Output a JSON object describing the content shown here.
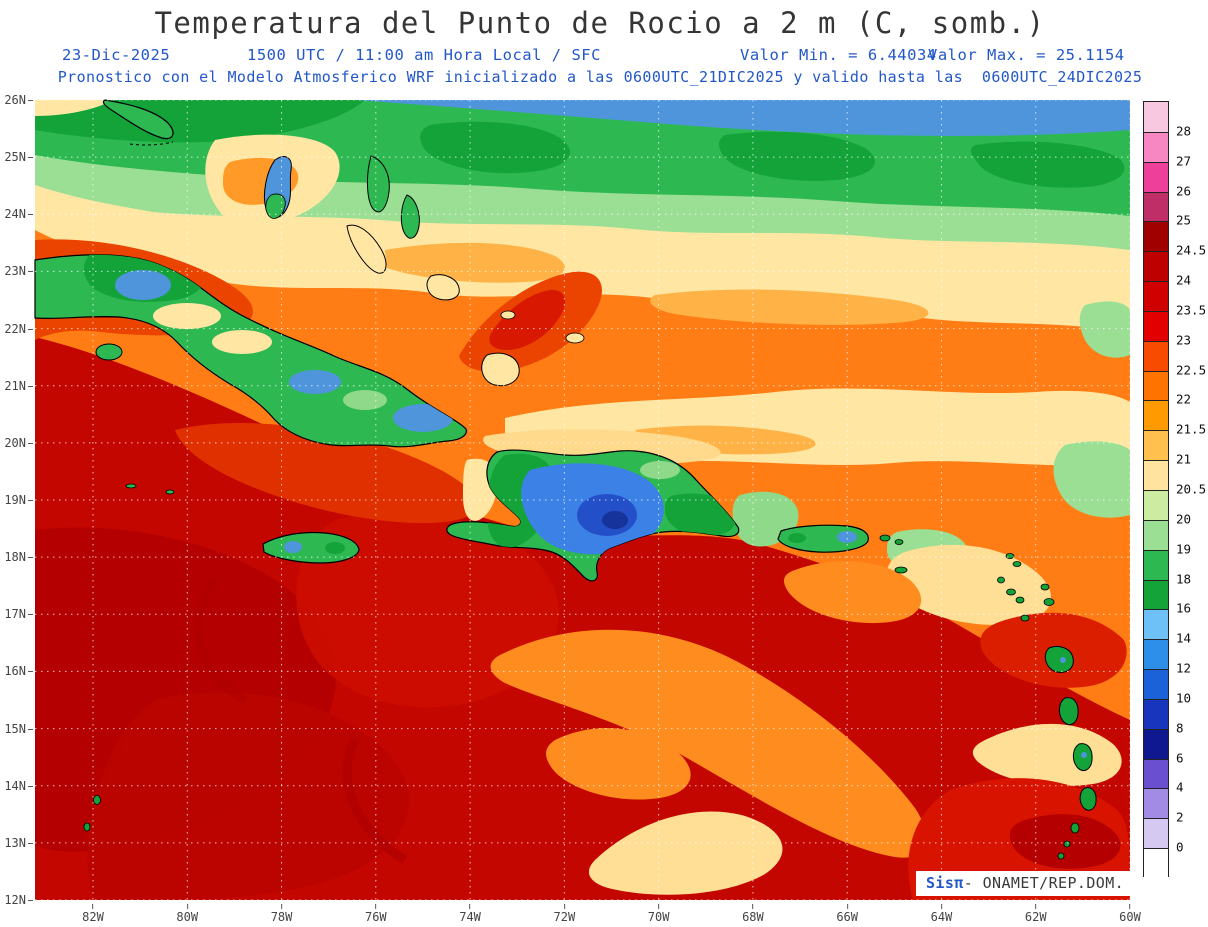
{
  "header": {
    "title": "Temperatura del Punto de Rocio a 2 m (C, somb.)",
    "date": "23-Dic-2025",
    "valid_time": "1500 UTC / 11:00 am Hora Local / SFC",
    "valor_min": "Valor Min. = 6.44034",
    "valor_max": "Valor Max. = 25.1154",
    "model_line": "Pronostico con el Modelo Atmosferico WRF inicializado a las 0600UTC_21DIC2025 y valido hasta las  0600UTC_24DIC2025"
  },
  "map": {
    "lat_ticks": [
      "26N",
      "25N",
      "24N",
      "23N",
      "22N",
      "21N",
      "20N",
      "19N",
      "18N",
      "17N",
      "16N",
      "15N",
      "14N",
      "13N",
      "12N"
    ],
    "lon_ticks": [
      "82W",
      "80W",
      "78W",
      "76W",
      "74W",
      "72W",
      "70W",
      "68W",
      "66W",
      "64W",
      "62W",
      "60W"
    ]
  },
  "colorbar": {
    "labels": [
      "28",
      "27",
      "26",
      "25",
      "24.5",
      "24",
      "23.5",
      "23",
      "22.5",
      "22",
      "21.5",
      "21",
      "20.5",
      "20",
      "19",
      "18",
      "16",
      "14",
      "12",
      "10",
      "8",
      "6",
      "4",
      "2",
      "0"
    ],
    "colors": [
      "#f8c8e0",
      "#f787c2",
      "#ee3f9b",
      "#bf2e66",
      "#a00000",
      "#bd0000",
      "#d00000",
      "#e30000",
      "#f94b00",
      "#ff7300",
      "#ff9a00",
      "#ffc04d",
      "#ffe39e",
      "#cdeba1",
      "#9bdf94",
      "#2eb852",
      "#13a339",
      "#6ec1f7",
      "#2e8fe8",
      "#1b62d9",
      "#1736bd",
      "#10188f",
      "#6a4fd0",
      "#a18be4",
      "#d5c9f2",
      "#ffffff"
    ]
  },
  "branding": {
    "logo": "Sisπ",
    "text": "- ONAMET/REP.DOM."
  },
  "chart_data": {
    "type": "heatmap",
    "title": "Temperatura del Punto de Rocio a 2 m (C, somb.)",
    "units": "C",
    "valor_min": 6.44034,
    "valor_max": 25.1154,
    "colorbar_levels_top_to_bottom": [
      28,
      27,
      26,
      25,
      24.5,
      24,
      23.5,
      23,
      22.5,
      22,
      21.5,
      21,
      20.5,
      20,
      19,
      18,
      16,
      14,
      12,
      10,
      8,
      6,
      4,
      2,
      0
    ],
    "lat_ticks": [
      "26N",
      "25N",
      "24N",
      "23N",
      "22N",
      "21N",
      "20N",
      "19N",
      "18N",
      "17N",
      "16N",
      "15N",
      "14N",
      "13N",
      "12N"
    ],
    "lon_ticks": [
      "82W",
      "80W",
      "78W",
      "76W",
      "74W",
      "72W",
      "70W",
      "68W",
      "66W",
      "64W",
      "62W",
      "60W"
    ],
    "legend_position": "right",
    "grid": true
  }
}
